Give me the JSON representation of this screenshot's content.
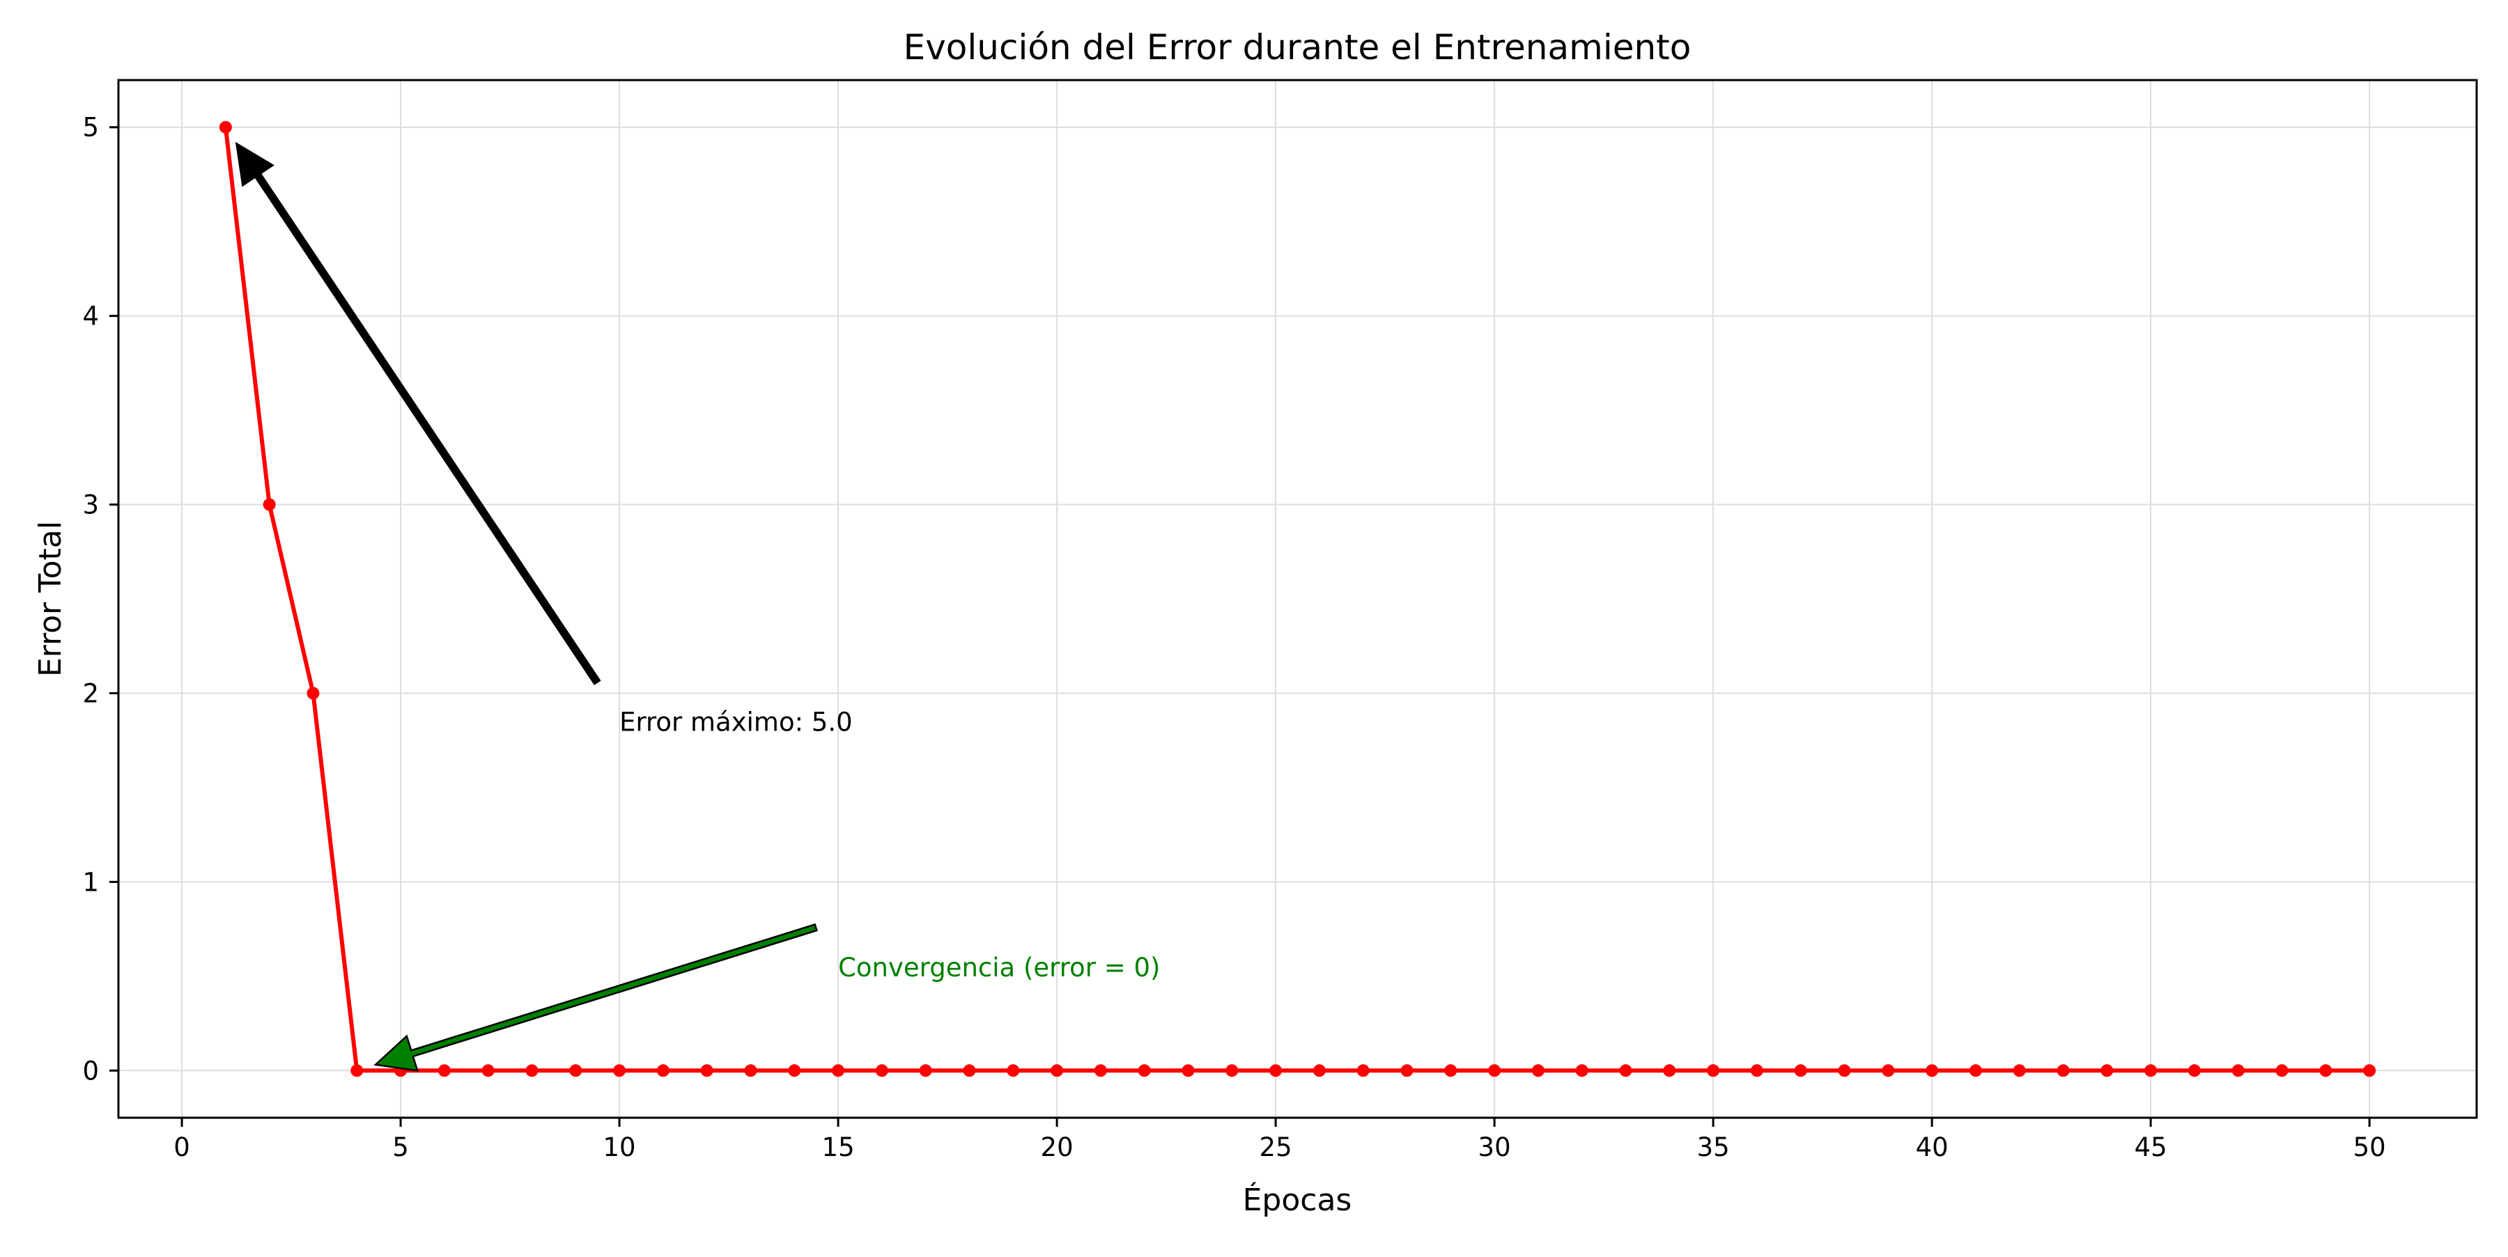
{
  "chart_data": {
    "type": "line",
    "title": "Evolución del Error durante el Entrenamiento",
    "xlabel": "Épocas",
    "ylabel": "Error Total",
    "xlim": [
      -1.45,
      52.45
    ],
    "ylim": [
      -0.25,
      5.25
    ],
    "xticks": [
      0,
      5,
      10,
      15,
      20,
      25,
      30,
      35,
      40,
      45,
      50
    ],
    "yticks": [
      0,
      1,
      2,
      3,
      4,
      5
    ],
    "grid": true,
    "series": [
      {
        "color": "#ff0000",
        "marker": "circle",
        "x": [
          1,
          2,
          3,
          4,
          5,
          6,
          7,
          8,
          9,
          10,
          11,
          12,
          13,
          14,
          15,
          16,
          17,
          18,
          19,
          20,
          21,
          22,
          23,
          24,
          25,
          26,
          27,
          28,
          29,
          30,
          31,
          32,
          33,
          34,
          35,
          36,
          37,
          38,
          39,
          40,
          41,
          42,
          43,
          44,
          45,
          46,
          47,
          48,
          49,
          50
        ],
        "y": [
          5,
          3,
          2,
          0,
          0,
          0,
          0,
          0,
          0,
          0,
          0,
          0,
          0,
          0,
          0,
          0,
          0,
          0,
          0,
          0,
          0,
          0,
          0,
          0,
          0,
          0,
          0,
          0,
          0,
          0,
          0,
          0,
          0,
          0,
          0,
          0,
          0,
          0,
          0,
          0,
          0,
          0,
          0,
          0,
          0,
          0,
          0,
          0,
          0,
          0
        ]
      }
    ],
    "annotations": [
      {
        "text": "Error máximo: 5.0",
        "point": [
          1,
          5
        ],
        "text_at": [
          10,
          1.8
        ],
        "color": "#000000",
        "arrow_color": "#000000"
      },
      {
        "text": "Convergencia (error = 0)",
        "point": [
          4,
          0
        ],
        "text_at": [
          15,
          0.5
        ],
        "color": "#008000",
        "arrow_color": "#008000"
      }
    ]
  }
}
